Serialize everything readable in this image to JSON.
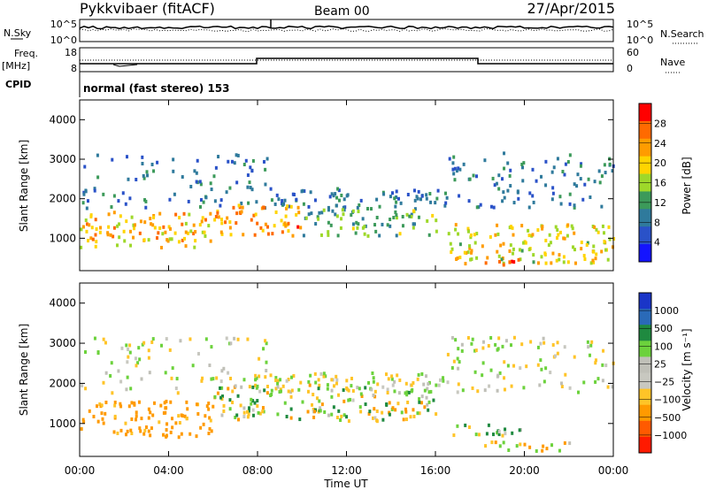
{
  "header": {
    "station": "Pykkvibaer (fitACF)",
    "beam": "Beam 00",
    "date": "27/Apr/2015"
  },
  "panels": {
    "nsky_label": "N.Sky",
    "nsearch_label": "N.Search",
    "noise_ticks": [
      "10^5",
      "10^0"
    ],
    "freq_label_top": "Freq.",
    "freq_label_unit": "[MHz]",
    "freq_ticks": [
      "18",
      "8"
    ],
    "nave_label": "Nave",
    "nave_ticks": [
      "60",
      "0"
    ],
    "cpid_label": "CPID",
    "cpid_text": "normal (fast stereo) 153"
  },
  "axes": {
    "ylabel": "Slant Range [km]",
    "y_ticks": [
      "4000",
      "3000",
      "2000",
      "1000"
    ],
    "x_ticks": [
      "00:00",
      "04:00",
      "08:00",
      "12:00",
      "16:00",
      "20:00",
      "00:00"
    ],
    "xlabel": "Time UT"
  },
  "power_scale": {
    "label": "Power [dB]",
    "ticks": [
      "28",
      "24",
      "20",
      "16",
      "12",
      "8",
      "4"
    ],
    "colors": [
      "#ff0000",
      "#ff6a00",
      "#ff9c00",
      "#ffd400",
      "#9ed82a",
      "#3c9a5a",
      "#2f7a9c",
      "#2a52c8",
      "#1414ff"
    ]
  },
  "velocity_scale": {
    "label": "Velocity [m s⁻¹]",
    "ticks": [
      "1000",
      "500",
      "100",
      "25",
      "−25",
      "−100",
      "−500",
      "−1000"
    ],
    "colors": [
      "#1a35c8",
      "#2a6ab8",
      "#1f8a40",
      "#6cd23c",
      "#c0c0b8",
      "#c8c8c0",
      "#ffc428",
      "#ff9a00",
      "#ff5a00",
      "#ff1a00"
    ]
  },
  "chart_data": [
    {
      "type": "heatmap",
      "title": "",
      "quantity": "Power [dB]",
      "ylabel": "Slant Range [km]",
      "xlabel": "Time UT",
      "x_range_hours": [
        0,
        24
      ],
      "ylim": [
        180,
        4500
      ],
      "colorbar_range": [
        2,
        32
      ],
      "features": [
        {
          "t0": 0.0,
          "t1": 6.0,
          "r0": 800,
          "r1": 1700,
          "power": 22
        },
        {
          "t0": 6.0,
          "t1": 10.0,
          "r0": 1100,
          "r1": 1900,
          "power": 24
        },
        {
          "t0": 10.0,
          "t1": 16.0,
          "r0": 1100,
          "r1": 1800,
          "power": 14
        },
        {
          "t0": 16.5,
          "t1": 24.0,
          "r0": 400,
          "r1": 1400,
          "power": 20
        },
        {
          "t0": 18.0,
          "t1": 20.0,
          "r0": 350,
          "r1": 550,
          "power": 30
        }
      ]
    },
    {
      "type": "heatmap",
      "title": "",
      "quantity": "Velocity [m s⁻¹]",
      "ylabel": "Slant Range [km]",
      "xlabel": "Time UT",
      "x_range_hours": [
        0,
        24
      ],
      "ylim": [
        180,
        4500
      ],
      "colorbar_range": [
        -1000,
        1000
      ],
      "features": [
        {
          "t0": 0.0,
          "t1": 6.0,
          "r0": 700,
          "r1": 1600,
          "velocity": -200
        },
        {
          "t0": 6.0,
          "t1": 16.0,
          "r0": 1100,
          "r1": 2000,
          "velocity": 0
        },
        {
          "t0": 16.5,
          "t1": 20.0,
          "r0": 700,
          "r1": 1000,
          "velocity": 100
        },
        {
          "t0": 18.0,
          "t1": 22.0,
          "r0": 350,
          "r1": 600,
          "velocity": -60
        }
      ]
    }
  ]
}
